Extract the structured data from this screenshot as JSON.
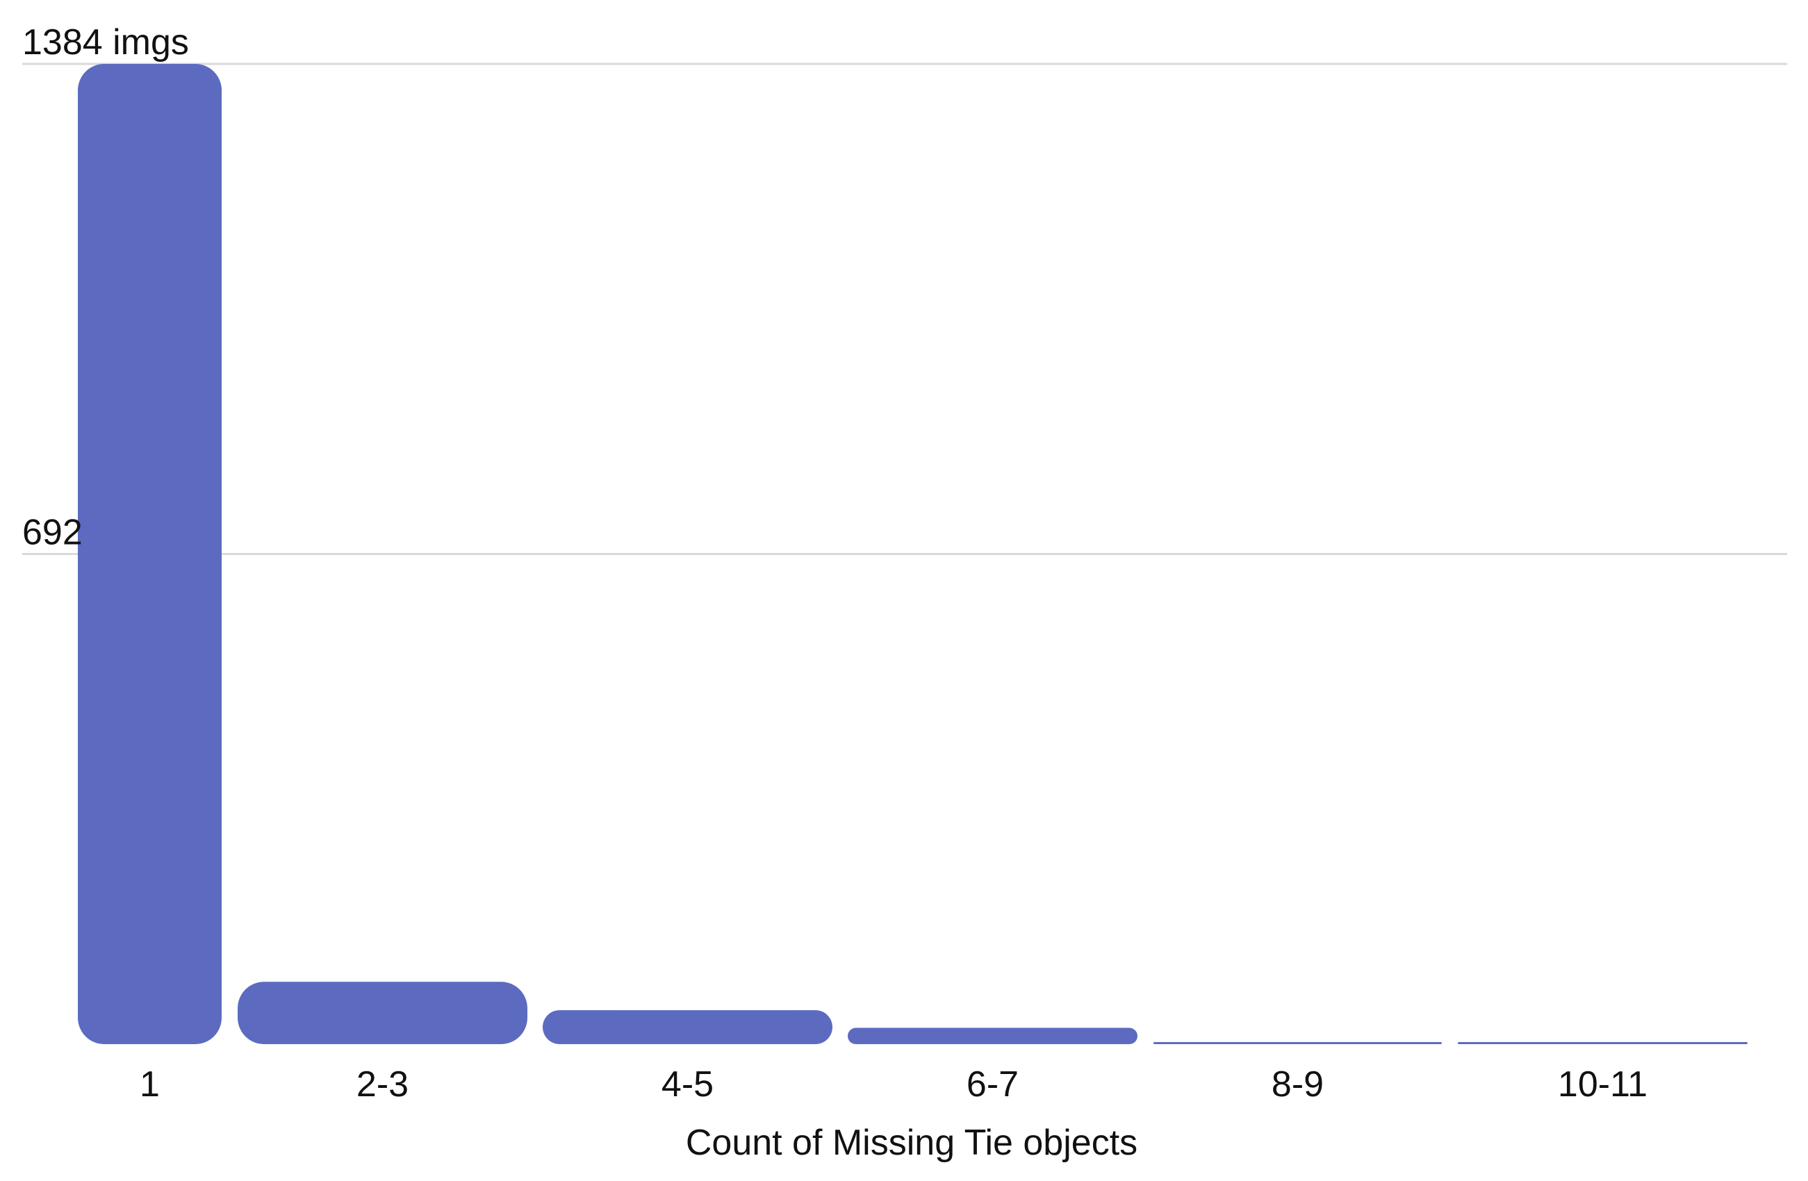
{
  "chart_data": {
    "type": "bar",
    "title": "",
    "xlabel": "Count of Missing Tie objects",
    "ylabel": "",
    "categories": [
      "1",
      "2-3",
      "4-5",
      "6-7",
      "8-9",
      "10-11"
    ],
    "values": [
      1384,
      88,
      48,
      23,
      3,
      3
    ],
    "ylim": [
      0,
      1384
    ],
    "y_ticks": [
      {
        "value": 1384,
        "label": "1384 imgs"
      },
      {
        "value": 692,
        "label": "692"
      }
    ],
    "grid": true,
    "legend": "none",
    "bar_color": "#5c6bc0",
    "gridline_color": "#d9d9d9"
  }
}
